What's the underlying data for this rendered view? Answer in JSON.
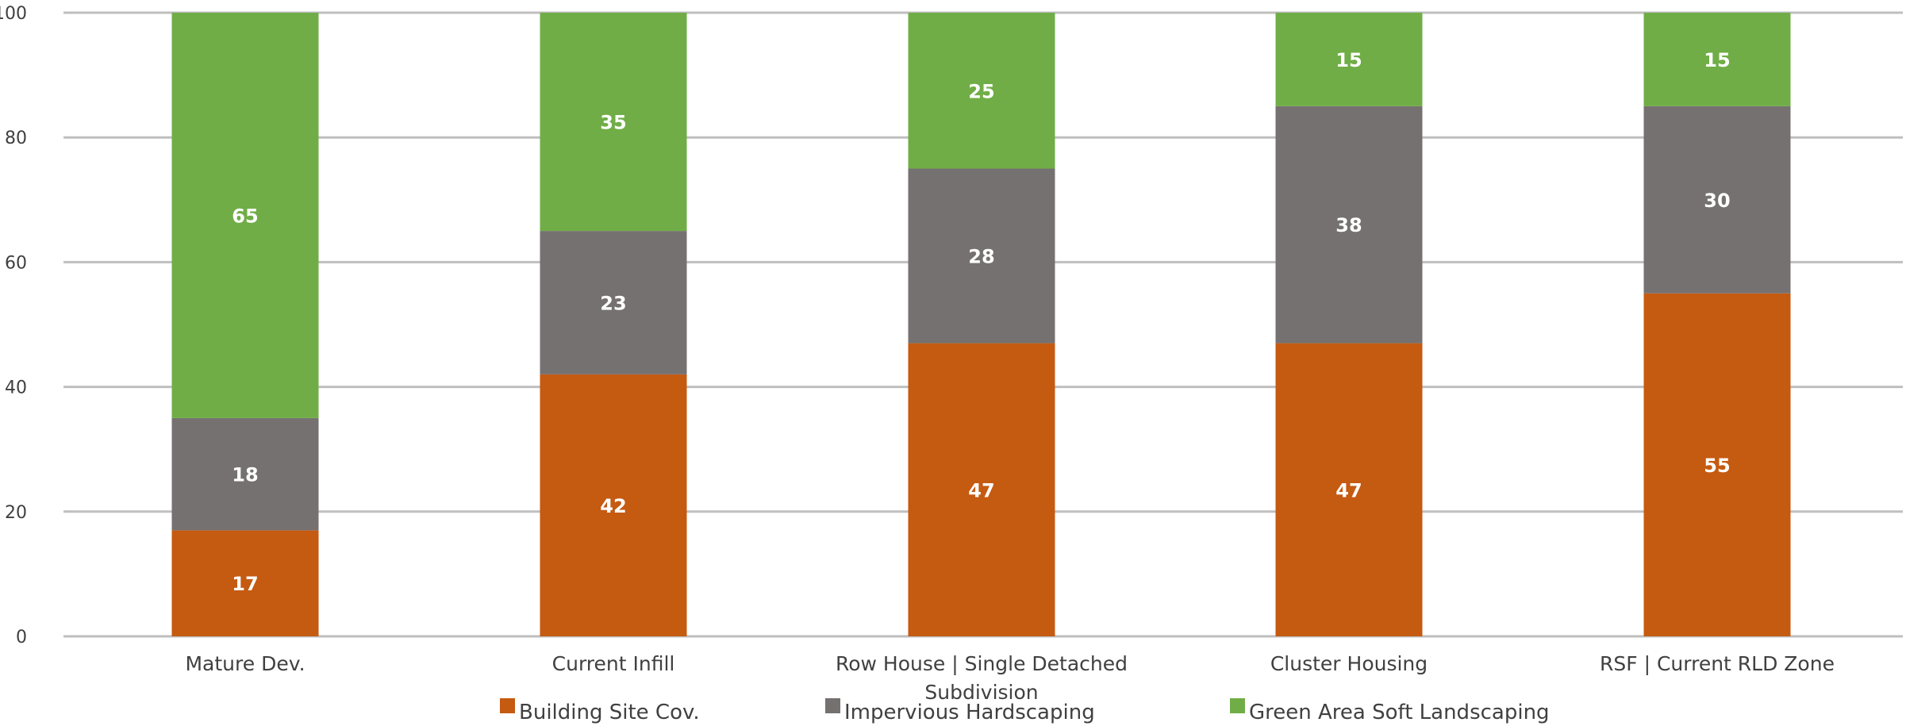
{
  "chart_data": {
    "type": "bar",
    "stacked": true,
    "title": "",
    "xlabel": "",
    "ylabel": "",
    "ylim": [
      0,
      100
    ],
    "yticks": [
      0,
      20,
      40,
      60,
      80,
      100
    ],
    "grid": true,
    "legend_position": "bottom",
    "categories": [
      "Mature Dev.",
      "Current Infill",
      "Row House | Single Detached Subdivision",
      "Cluster Housing",
      "RSF | Current RLD Zone"
    ],
    "series": [
      {
        "name": "Building Site Cov.",
        "color": "#C55A11",
        "values": [
          17,
          42,
          47,
          47,
          55
        ]
      },
      {
        "name": "Impervious Hardscaping",
        "color": "#767171",
        "values": [
          18,
          23,
          28,
          38,
          30
        ]
      },
      {
        "name": "Green Area Soft Landscaping",
        "color": "#70AD47",
        "values": [
          65,
          35,
          25,
          15,
          15
        ]
      }
    ]
  }
}
